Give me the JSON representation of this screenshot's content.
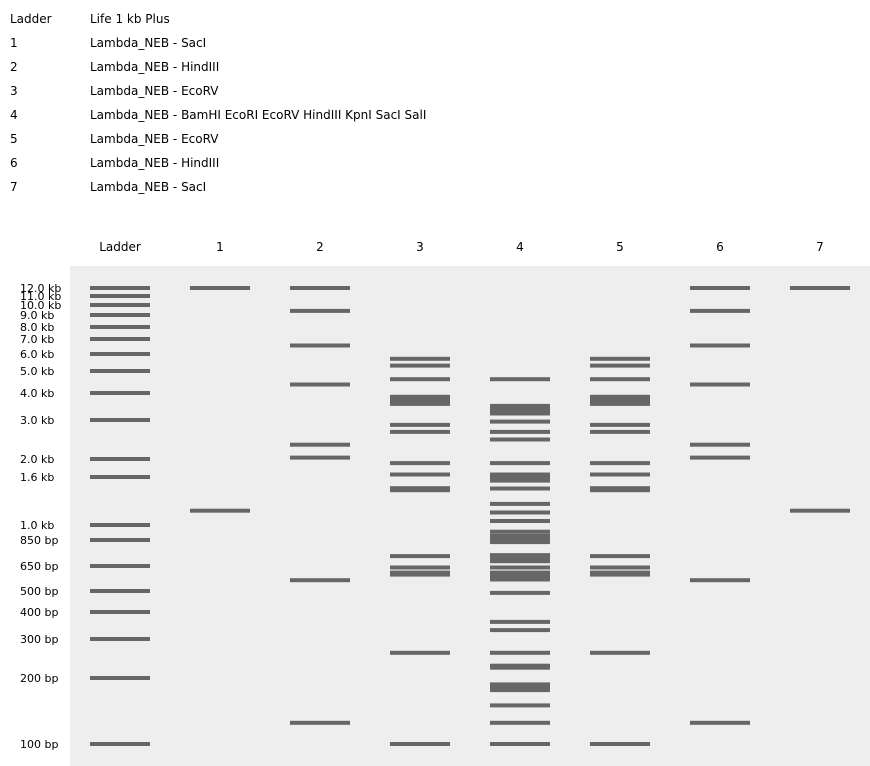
{
  "legend": [
    {
      "lane": "Ladder",
      "description": "Life 1 kb Plus"
    },
    {
      "lane": "1",
      "description": "Lambda_NEB - SacI"
    },
    {
      "lane": "2",
      "description": "Lambda_NEB - HindIII"
    },
    {
      "lane": "3",
      "description": "Lambda_NEB - EcoRV"
    },
    {
      "lane": "4",
      "description": "Lambda_NEB - BamHI EcoRI EcoRV HindIII KpnI SacI SalI"
    },
    {
      "lane": "5",
      "description": "Lambda_NEB - EcoRV"
    },
    {
      "lane": "6",
      "description": "Lambda_NEB - HindIII"
    },
    {
      "lane": "7",
      "description": "Lambda_NEB - SacI"
    }
  ],
  "gel": {
    "background_color": "#eeeeee",
    "band_color": "#666666",
    "size_markers": [
      {
        "label": "12.0 kb",
        "bp": 12000
      },
      {
        "label": "11.0 kb",
        "bp": 11000
      },
      {
        "label": "10.0 kb",
        "bp": 10000
      },
      {
        "label": "9.0 kb",
        "bp": 9000
      },
      {
        "label": "8.0 kb",
        "bp": 8000
      },
      {
        "label": "7.0 kb",
        "bp": 7000
      },
      {
        "label": "6.0 kb",
        "bp": 6000
      },
      {
        "label": "5.0 kb",
        "bp": 5000
      },
      {
        "label": "4.0 kb",
        "bp": 4000
      },
      {
        "label": "3.0 kb",
        "bp": 3000
      },
      {
        "label": "2.0 kb",
        "bp": 2000
      },
      {
        "label": "1.6 kb",
        "bp": 1600
      },
      {
        "label": "1.0 kb",
        "bp": 1000
      },
      {
        "label": "850 bp",
        "bp": 850
      },
      {
        "label": "650 bp",
        "bp": 650
      },
      {
        "label": "500 bp",
        "bp": 500
      },
      {
        "label": "400 bp",
        "bp": 400
      },
      {
        "label": "300 bp",
        "bp": 300
      },
      {
        "label": "200 bp",
        "bp": 200
      },
      {
        "label": "100 bp",
        "bp": 100
      }
    ],
    "lanes": [
      {
        "header": "Ladder",
        "bands": [
          {
            "bp": 12000
          },
          {
            "bp": 11000
          },
          {
            "bp": 10000
          },
          {
            "bp": 9000
          },
          {
            "bp": 8000
          },
          {
            "bp": 7000
          },
          {
            "bp": 6000
          },
          {
            "bp": 5000
          },
          {
            "bp": 4000
          },
          {
            "bp": 3000
          },
          {
            "bp": 2000
          },
          {
            "bp": 1600
          },
          {
            "bp": 1000
          },
          {
            "bp": 850
          },
          {
            "bp": 650
          },
          {
            "bp": 500
          },
          {
            "bp": 400
          },
          {
            "bp": 300
          },
          {
            "bp": 200
          },
          {
            "bp": 100
          }
        ]
      },
      {
        "header": "1",
        "bands": [
          {
            "bp": 12000
          },
          {
            "bp": 1150
          }
        ]
      },
      {
        "header": "2",
        "bands": [
          {
            "bp": 12000
          },
          {
            "bp": 9400
          },
          {
            "bp": 6550
          },
          {
            "bp": 4360
          },
          {
            "bp": 2320
          },
          {
            "bp": 2030
          },
          {
            "bp": 560
          },
          {
            "bp": 125
          }
        ]
      },
      {
        "header": "3",
        "bands": [
          {
            "bp": 5700
          },
          {
            "bp": 5300
          },
          {
            "bp": 4600
          },
          {
            "bp": 3800,
            "weight": 2
          },
          {
            "bp": 3600,
            "weight": 2
          },
          {
            "bp": 2850
          },
          {
            "bp": 2650
          },
          {
            "bp": 1900
          },
          {
            "bp": 1650
          },
          {
            "bp": 1420,
            "weight": 2
          },
          {
            "bp": 720
          },
          {
            "bp": 640
          },
          {
            "bp": 600,
            "weight": 2
          },
          {
            "bp": 260
          },
          {
            "bp": 100
          }
        ]
      },
      {
        "header": "4",
        "bands": [
          {
            "bp": 4600
          },
          {
            "bp": 3450,
            "weight": 2
          },
          {
            "bp": 3250,
            "weight": 2
          },
          {
            "bp": 2950
          },
          {
            "bp": 2650
          },
          {
            "bp": 2450
          },
          {
            "bp": 1900
          },
          {
            "bp": 1630,
            "weight": 2
          },
          {
            "bp": 1560,
            "weight": 2
          },
          {
            "bp": 1430
          },
          {
            "bp": 1230
          },
          {
            "bp": 1130
          },
          {
            "bp": 1040
          },
          {
            "bp": 930
          },
          {
            "bp": 880,
            "weight": 2
          },
          {
            "bp": 840,
            "weight": 2
          },
          {
            "bp": 720,
            "weight": 2
          },
          {
            "bp": 690,
            "weight": 2
          },
          {
            "bp": 640
          },
          {
            "bp": 600,
            "weight": 2
          },
          {
            "bp": 570,
            "weight": 2
          },
          {
            "bp": 490
          },
          {
            "bp": 360
          },
          {
            "bp": 330
          },
          {
            "bp": 260
          },
          {
            "bp": 225,
            "weight": 2
          },
          {
            "bp": 185,
            "weight": 2
          },
          {
            "bp": 178,
            "weight": 2
          },
          {
            "bp": 150
          },
          {
            "bp": 125
          },
          {
            "bp": 100
          }
        ]
      },
      {
        "header": "5",
        "bands": [
          {
            "bp": 5700
          },
          {
            "bp": 5300
          },
          {
            "bp": 4600
          },
          {
            "bp": 3800,
            "weight": 2
          },
          {
            "bp": 3600,
            "weight": 2
          },
          {
            "bp": 2850
          },
          {
            "bp": 2650
          },
          {
            "bp": 1900
          },
          {
            "bp": 1650
          },
          {
            "bp": 1420,
            "weight": 2
          },
          {
            "bp": 720
          },
          {
            "bp": 640
          },
          {
            "bp": 600,
            "weight": 2
          },
          {
            "bp": 260
          },
          {
            "bp": 100
          }
        ]
      },
      {
        "header": "6",
        "bands": [
          {
            "bp": 12000
          },
          {
            "bp": 9400
          },
          {
            "bp": 6550
          },
          {
            "bp": 4360
          },
          {
            "bp": 2320
          },
          {
            "bp": 2030
          },
          {
            "bp": 560
          },
          {
            "bp": 125
          }
        ]
      },
      {
        "header": "7",
        "bands": [
          {
            "bp": 12000
          },
          {
            "bp": 1150
          }
        ]
      }
    ]
  }
}
